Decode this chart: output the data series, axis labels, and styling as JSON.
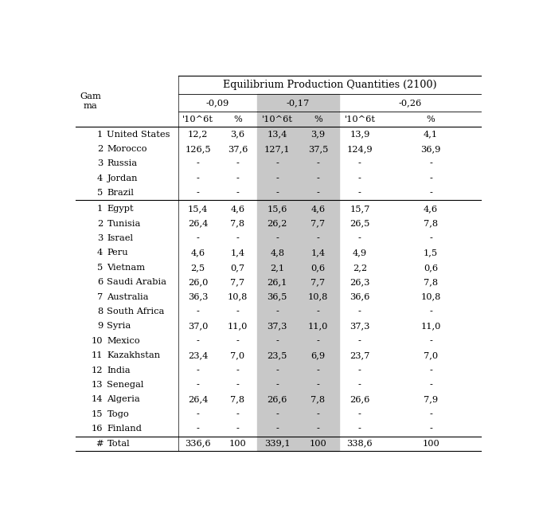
{
  "title": "Equilibrium Production Quantities (2100)",
  "col_groups": [
    "-0,09",
    "-0,17",
    "-0,26"
  ],
  "rows_group1": [
    [
      "1",
      "United States",
      "12,2",
      "3,6",
      "13,4",
      "3,9",
      "13,9",
      "4,1"
    ],
    [
      "2",
      "Morocco",
      "126,5",
      "37,6",
      "127,1",
      "37,5",
      "124,9",
      "36,9"
    ],
    [
      "3",
      "Russia",
      "-",
      "-",
      "-",
      "-",
      "-",
      "-"
    ],
    [
      "4",
      "Jordan",
      "-",
      "-",
      "-",
      "-",
      "-",
      "-"
    ],
    [
      "5",
      "Brazil",
      "-",
      "-",
      "-",
      "-",
      "-",
      "-"
    ]
  ],
  "rows_group2": [
    [
      "1",
      "Egypt",
      "15,4",
      "4,6",
      "15,6",
      "4,6",
      "15,7",
      "4,6"
    ],
    [
      "2",
      "Tunisia",
      "26,4",
      "7,8",
      "26,2",
      "7,7",
      "26,5",
      "7,8"
    ],
    [
      "3",
      "Israel",
      "-",
      "-",
      "-",
      "-",
      "-",
      "-"
    ],
    [
      "4",
      "Peru",
      "4,6",
      "1,4",
      "4,8",
      "1,4",
      "4,9",
      "1,5"
    ],
    [
      "5",
      "Vietnam",
      "2,5",
      "0,7",
      "2,1",
      "0,6",
      "2,2",
      "0,6"
    ],
    [
      "6",
      "Saudi Arabia",
      "26,0",
      "7,7",
      "26,1",
      "7,7",
      "26,3",
      "7,8"
    ],
    [
      "7",
      "Australia",
      "36,3",
      "10,8",
      "36,5",
      "10,8",
      "36,6",
      "10,8"
    ],
    [
      "8",
      "South Africa",
      "-",
      "-",
      "-",
      "-",
      "-",
      "-"
    ],
    [
      "9",
      "Syria",
      "37,0",
      "11,0",
      "37,3",
      "11,0",
      "37,3",
      "11,0"
    ],
    [
      "10",
      "Mexico",
      "-",
      "-",
      "-",
      "-",
      "-",
      "-"
    ],
    [
      "11",
      "Kazakhstan",
      "23,4",
      "7,0",
      "23,5",
      "6,9",
      "23,7",
      "7,0"
    ],
    [
      "12",
      "India",
      "-",
      "-",
      "-",
      "-",
      "-",
      "-"
    ],
    [
      "13",
      "Senegal",
      "-",
      "-",
      "-",
      "-",
      "-",
      "-"
    ],
    [
      "14",
      "Algeria",
      "26,4",
      "7,8",
      "26,6",
      "7,8",
      "26,6",
      "7,9"
    ],
    [
      "15",
      "Togo",
      "-",
      "-",
      "-",
      "-",
      "-",
      "-"
    ],
    [
      "16",
      "Finland",
      "-",
      "-",
      "-",
      "-",
      "-",
      "-"
    ]
  ],
  "total_row": [
    "#",
    "Total",
    "336,6",
    "100",
    "339,1",
    "100",
    "338,6",
    "100"
  ],
  "bg_color": "#ffffff",
  "highlight_color": "#c8c8c8",
  "text_color": "#000000",
  "fontsize": 8.2,
  "title_fontsize": 9.2
}
